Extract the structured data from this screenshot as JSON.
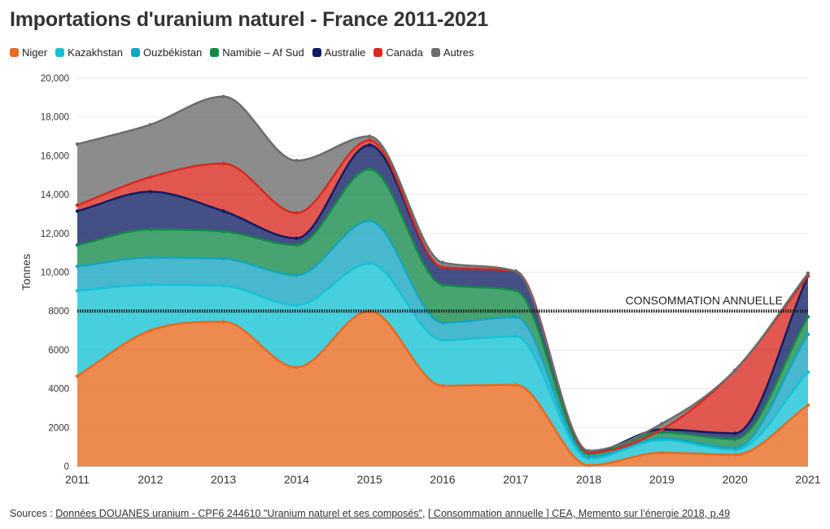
{
  "title": "Importations d'uranium naturel - France 2011-2021",
  "legend": [
    {
      "label": "Niger",
      "color": "#e8691f"
    },
    {
      "label": "Kazakhstan",
      "color": "#15c2d4"
    },
    {
      "label": "Ouzbékistan",
      "color": "#13a4bf"
    },
    {
      "label": "Namibie – Af Sud",
      "color": "#138a48"
    },
    {
      "label": "Australie",
      "color": "#0f1e63"
    },
    {
      "label": "Canada",
      "color": "#d9291f"
    },
    {
      "label": "Autres",
      "color": "#6c6c6c"
    }
  ],
  "source": {
    "prefix": "Sources : ",
    "link1": "Données DOUANES uranium - CPF6 244610 \"Uranium naturel et ses composés\"",
    "sep": ", ",
    "link2": "[ Consommation annuelle ] CEA, Memento sur l’énergie 2018, p.49"
  },
  "chart_data": {
    "type": "area",
    "stacked": true,
    "ylabel": "Tonnes",
    "ylim": [
      0,
      20000
    ],
    "yticks": [
      "0",
      "2000",
      "4000",
      "6000",
      "8000",
      "10,000",
      "12,000",
      "14,000",
      "16,000",
      "18,000",
      "20,000"
    ],
    "ytick_values": [
      0,
      2000,
      4000,
      6000,
      8000,
      10000,
      12000,
      14000,
      16000,
      18000,
      20000
    ],
    "x": [
      "2011",
      "2012",
      "2013",
      "2014",
      "2015",
      "2016",
      "2017",
      "2018",
      "2019",
      "2020",
      "2021"
    ],
    "series": [
      {
        "name": "Niger",
        "color": "#e8691f",
        "values": [
          4650,
          7000,
          7450,
          5100,
          8000,
          4150,
          4200,
          50,
          700,
          600,
          3150
        ]
      },
      {
        "name": "Kazakhstan",
        "color": "#15c2d4",
        "values": [
          4400,
          2350,
          1850,
          3200,
          2450,
          2350,
          2500,
          350,
          650,
          250,
          1700
        ]
      },
      {
        "name": "Ouzbékistan",
        "color": "#13a4bf",
        "values": [
          1250,
          1400,
          1400,
          1550,
          2200,
          900,
          1000,
          100,
          100,
          100,
          1950
        ]
      },
      {
        "name": "Namibie – Af Sud",
        "color": "#138a48",
        "values": [
          1100,
          1450,
          1400,
          1550,
          2650,
          1950,
          1350,
          150,
          300,
          450,
          900
        ]
      },
      {
        "name": "Australie",
        "color": "#0f1e63",
        "values": [
          1750,
          1950,
          1050,
          350,
          1250,
          900,
          1000,
          50,
          150,
          300,
          2100
        ]
      },
      {
        "name": "Canada",
        "color": "#d9291f",
        "values": [
          300,
          750,
          2450,
          1300,
          250,
          0,
          0,
          0,
          0,
          3250,
          0
        ]
      },
      {
        "name": "Autres",
        "color": "#6c6c6c",
        "values": [
          3150,
          2700,
          3450,
          2700,
          200,
          250,
          0,
          100,
          300,
          0,
          150
        ]
      }
    ],
    "reference_line": {
      "label": "CONSOMMATION ANNUELLE",
      "value": 8000
    },
    "grid": true,
    "legend_position": "top-left"
  }
}
